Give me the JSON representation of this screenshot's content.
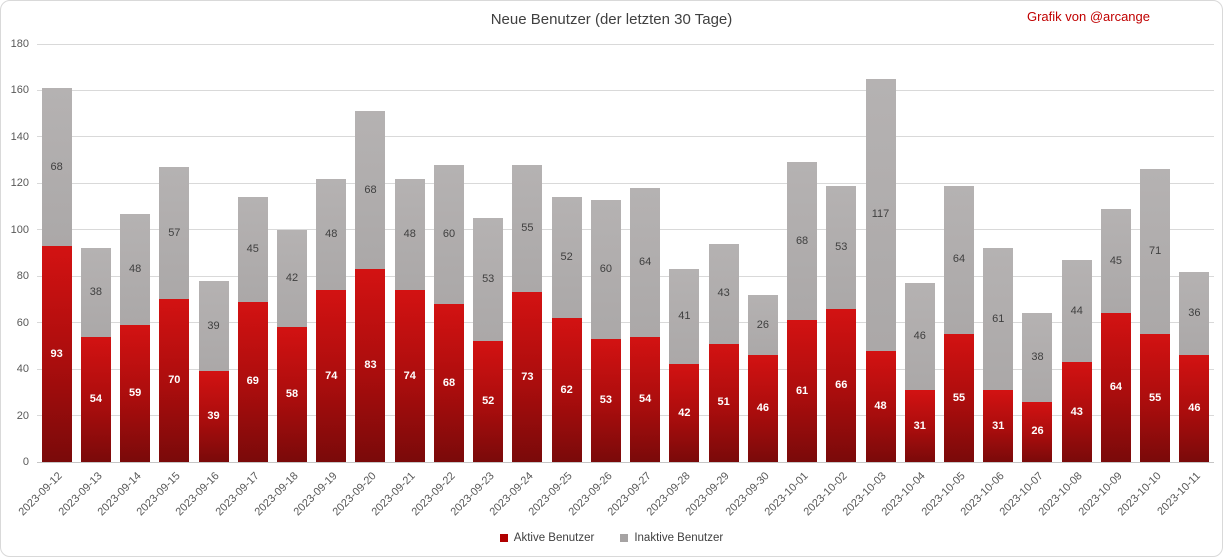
{
  "title": "Neue Benutzer (der letzten 30 Tage)",
  "credit": "Grafik von @arcange",
  "legend": {
    "active_label": "Aktive Benutzer",
    "inactive_label": "Inaktive Benutzer"
  },
  "colors": {
    "active_top": "#d31212",
    "active_mid": "#a90d0d",
    "active_bottom": "#7a0a0a",
    "inactive_top": "#b5b2b2",
    "inactive_bottom": "#aba8a8",
    "legend_active": "#b00000",
    "legend_inactive": "#a6a3a3",
    "credit_text": "#c00000",
    "grid": "#d9d9d9"
  },
  "chart_data": {
    "type": "bar",
    "stacked": true,
    "title": "Neue Benutzer (der letzten 30 Tage)",
    "xlabel": "",
    "ylabel": "",
    "ylim": [
      0,
      180
    ],
    "yticks": [
      0,
      20,
      40,
      60,
      80,
      100,
      120,
      140,
      160,
      180
    ],
    "grid": true,
    "legend_position": "bottom",
    "categories": [
      "2023-09-12",
      "2023-09-13",
      "2023-09-14",
      "2023-09-15",
      "2023-09-16",
      "2023-09-17",
      "2023-09-18",
      "2023-09-19",
      "2023-09-20",
      "2023-09-21",
      "2023-09-22",
      "2023-09-23",
      "2023-09-24",
      "2023-09-25",
      "2023-09-26",
      "2023-09-27",
      "2023-09-28",
      "2023-09-29",
      "2023-09-30",
      "2023-10-01",
      "2023-10-02",
      "2023-10-03",
      "2023-10-04",
      "2023-10-05",
      "2023-10-06",
      "2023-10-07",
      "2023-10-08",
      "2023-10-09",
      "2023-10-10",
      "2023-10-11"
    ],
    "series": [
      {
        "name": "Aktive Benutzer",
        "color": "#c00000",
        "values": [
          93,
          54,
          59,
          70,
          39,
          69,
          58,
          74,
          83,
          74,
          68,
          52,
          73,
          62,
          53,
          54,
          42,
          51,
          46,
          61,
          66,
          48,
          31,
          55,
          31,
          26,
          43,
          64,
          55,
          46
        ]
      },
      {
        "name": "Inaktive Benutzer",
        "color": "#b2afaf",
        "values": [
          68,
          38,
          48,
          57,
          39,
          45,
          42,
          48,
          68,
          48,
          60,
          53,
          55,
          52,
          60,
          64,
          41,
          43,
          26,
          68,
          53,
          117,
          46,
          64,
          61,
          38,
          44,
          45,
          71,
          36
        ]
      }
    ]
  }
}
